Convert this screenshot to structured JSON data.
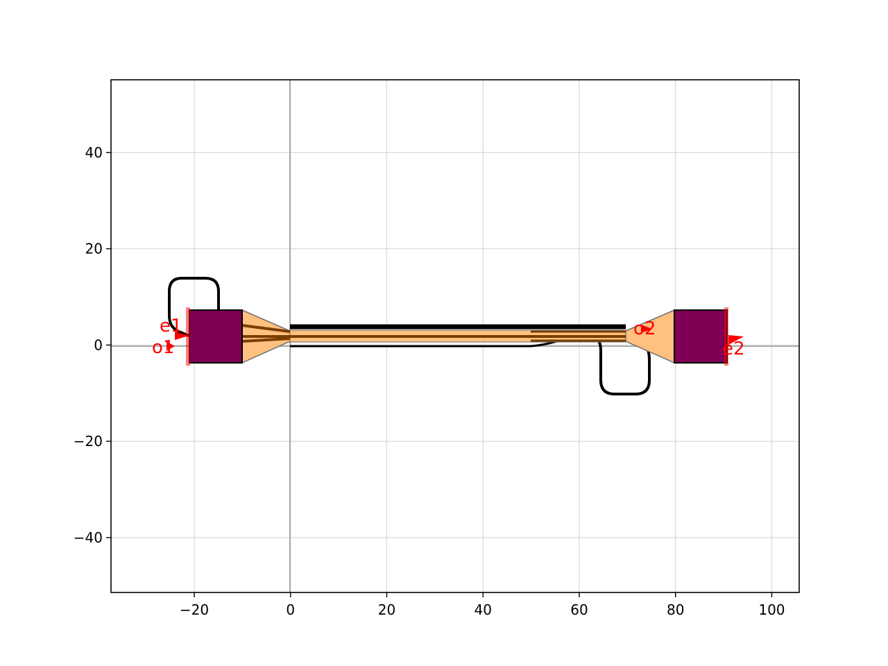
{
  "figure": {
    "x_ticks": [
      {
        "value": -20,
        "label": "−20"
      },
      {
        "value": 0,
        "label": "0"
      },
      {
        "value": 20,
        "label": "20"
      },
      {
        "value": 40,
        "label": "40"
      },
      {
        "value": 60,
        "label": "60"
      },
      {
        "value": 80,
        "label": "80"
      },
      {
        "value": 100,
        "label": "100"
      }
    ],
    "y_ticks": [
      {
        "value": 40,
        "label": "40"
      },
      {
        "value": 20,
        "label": "20"
      },
      {
        "value": 0,
        "label": "0"
      },
      {
        "value": -20,
        "label": "−20"
      },
      {
        "value": -40,
        "label": "−40"
      }
    ],
    "xlim": [
      -37.3,
      105.7
    ],
    "ylim": [
      -51.4,
      55.1
    ],
    "grid": true,
    "colors": {
      "pad": "#7f0055",
      "taper": "#ffc080",
      "waveguide": "#7a3e00",
      "heater_route": "#000000",
      "port": "#ff0000"
    }
  },
  "ports": {
    "o1": "o1",
    "e1": "e1",
    "o2": "o2",
    "e2": "e2"
  }
}
